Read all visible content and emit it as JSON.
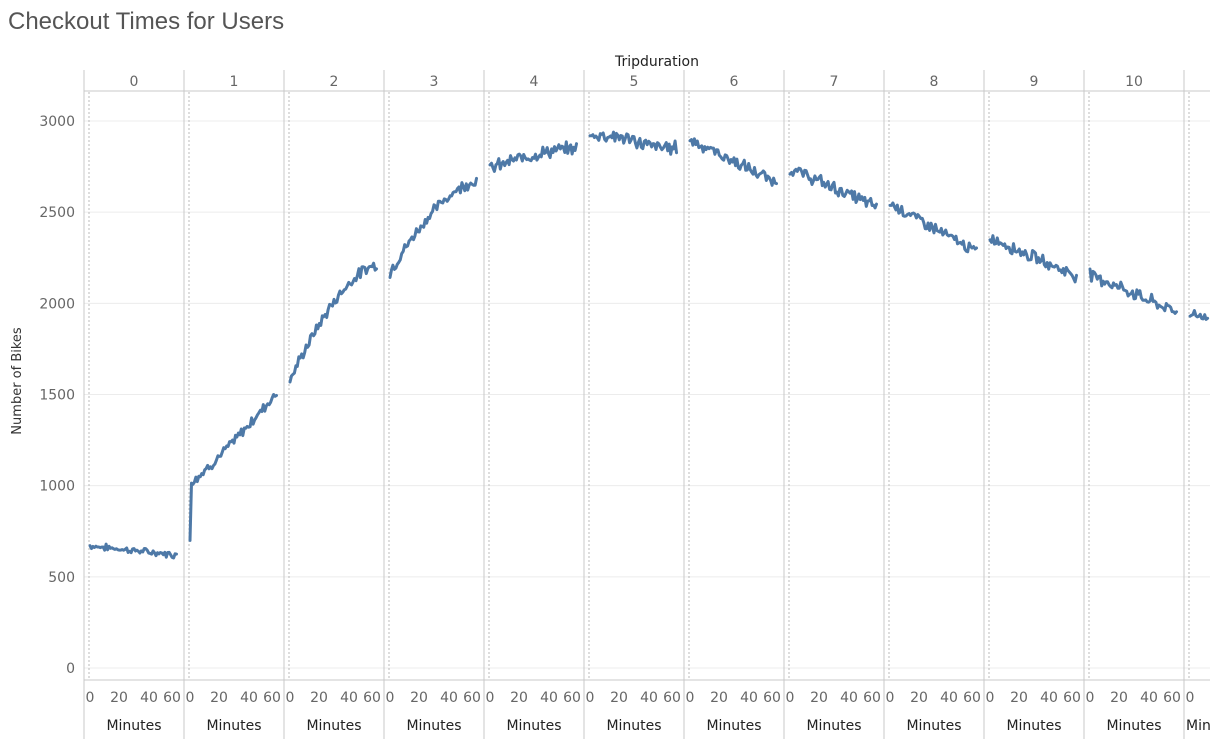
{
  "title": "Checkout Times for Users",
  "chart_data": {
    "type": "line",
    "title": "Checkout Times for Users",
    "panel_header_title": "Tripduration",
    "panel_axis_title": "Minutes",
    "ylabel": "Number of Bikes",
    "ylim": [
      0,
      3000
    ],
    "yticks": [
      0,
      500,
      1000,
      1500,
      2000,
      2500,
      3000
    ],
    "xticks": [
      0,
      20,
      40,
      60
    ],
    "panels": [
      "0",
      "1",
      "2",
      "3",
      "4",
      "5",
      "6",
      "7",
      "8",
      "9",
      "10"
    ],
    "partial_panel": {
      "x_tick": "0",
      "axis_label": "Min"
    },
    "line_color": "#4e79a7",
    "grid": true,
    "series": [
      {
        "panel": "0",
        "x_range": [
          0,
          59
        ],
        "start": 670,
        "end": 620,
        "noise": 28,
        "curve": "linear"
      },
      {
        "panel": "1",
        "x_range": [
          0,
          59
        ],
        "start": 1020,
        "end": 1510,
        "noise": 45,
        "curve": "convex",
        "initial_value": 700
      },
      {
        "panel": "2",
        "x_range": [
          0,
          59
        ],
        "start": 1580,
        "end": 2210,
        "noise": 45,
        "curve": "concave"
      },
      {
        "panel": "3",
        "x_range": [
          0,
          59
        ],
        "start": 2170,
        "end": 2670,
        "noise": 50,
        "curve": "concave"
      },
      {
        "panel": "4",
        "x_range": [
          0,
          59
        ],
        "start": 2740,
        "end": 2850,
        "noise": 55,
        "curve": "concave"
      },
      {
        "panel": "5",
        "x_range": [
          0,
          59
        ],
        "start": 2920,
        "end": 2860,
        "noise": 60,
        "curve": "flat"
      },
      {
        "panel": "6",
        "x_range": [
          0,
          59
        ],
        "start": 2900,
        "end": 2660,
        "noise": 55,
        "curve": "linear"
      },
      {
        "panel": "7",
        "x_range": [
          0,
          59
        ],
        "start": 2740,
        "end": 2530,
        "noise": 55,
        "curve": "linear"
      },
      {
        "panel": "8",
        "x_range": [
          0,
          59
        ],
        "start": 2550,
        "end": 2280,
        "noise": 50,
        "curve": "linear"
      },
      {
        "panel": "9",
        "x_range": [
          0,
          59
        ],
        "start": 2360,
        "end": 2150,
        "noise": 50,
        "curve": "linear"
      },
      {
        "panel": "10",
        "x_range": [
          0,
          59
        ],
        "start": 2160,
        "end": 1950,
        "noise": 55,
        "curve": "linear"
      },
      {
        "panel": "11",
        "x_range": [
          0,
          12
        ],
        "start": 1950,
        "end": 1920,
        "noise": 40,
        "curve": "linear"
      }
    ]
  }
}
